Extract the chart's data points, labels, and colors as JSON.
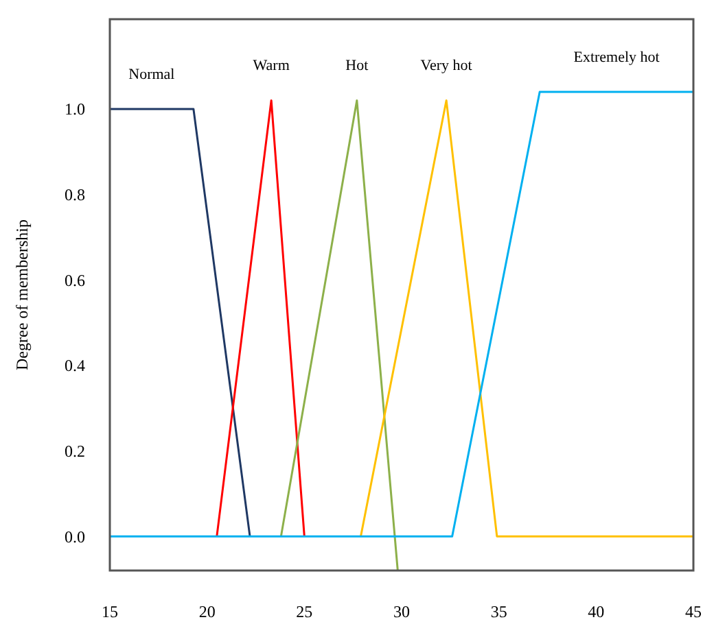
{
  "chart_data": {
    "type": "line",
    "ylabel": "Degree of membership",
    "xlim": [
      15,
      45
    ],
    "ylim": [
      -0.08,
      1.21
    ],
    "xticks": [
      15,
      20,
      25,
      30,
      35,
      40,
      45
    ],
    "yticks": [
      {
        "value": 0,
        "label": "0.0"
      },
      0.2,
      0.4,
      0.6,
      0.8,
      {
        "value": 1,
        "label": "1.0"
      }
    ],
    "grid": false,
    "legend": false,
    "marker": "none",
    "line_style": "solid",
    "series": [
      {
        "name": "Normal",
        "color": "#1f3864",
        "x": [
          15,
          19.3,
          22.2
        ],
        "values": [
          1.0,
          1.0,
          0
        ]
      },
      {
        "name": "Warm",
        "color": "#ff0000",
        "x": [
          20.5,
          23.3,
          25
        ],
        "values": [
          0,
          1.02,
          0
        ]
      },
      {
        "name": "Hot",
        "color": "#8db04a",
        "x": [
          23.8,
          27.7,
          29.8
        ],
        "values": [
          0,
          1.02,
          -0.08
        ]
      },
      {
        "name": "Very hot",
        "color": "#ffc000",
        "x": [
          27.9,
          32.3,
          34.9,
          45
        ],
        "values": [
          0,
          1.02,
          0,
          0
        ]
      },
      {
        "name": "Extremely hot",
        "color": "#00b0f0",
        "x": [
          15,
          32.6,
          37.1,
          45
        ],
        "values": [
          0,
          0,
          1.04,
          1.04
        ]
      }
    ]
  }
}
